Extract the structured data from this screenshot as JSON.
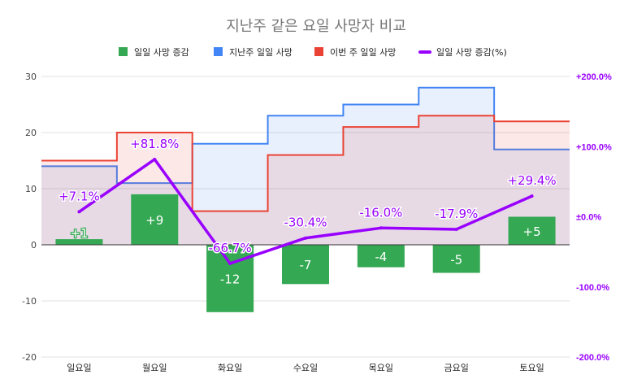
{
  "chart_data": {
    "type": "bar",
    "title": "지난주 같은 요일 사망자 비교",
    "categories": [
      "일요일",
      "월요일",
      "화요일",
      "수요일",
      "목요일",
      "금요일",
      "토요일"
    ],
    "legend": [
      {
        "key": "increase",
        "label": "일일 사망 증감",
        "color": "#34a853",
        "shape": "square"
      },
      {
        "key": "last_week",
        "label": "지난주 일일 사망",
        "color": "#4285f4",
        "shape": "square"
      },
      {
        "key": "this_week",
        "label": "이번 주 일일 사망",
        "color": "#ea4335",
        "shape": "square"
      },
      {
        "key": "pct",
        "label": "일일 사망 증감(%)",
        "color": "#9900ff",
        "shape": "line"
      }
    ],
    "series": [
      {
        "name": "일일 사망 증감",
        "kind": "bar",
        "axis": "left",
        "color": "#34a853",
        "values": [
          1,
          9,
          -12,
          -7,
          -4,
          -5,
          5
        ],
        "labels": [
          "+1",
          "+9",
          "-12",
          "-7",
          "-4",
          "-5",
          "+5"
        ]
      },
      {
        "name": "지난주 일일 사망",
        "kind": "stepped-area",
        "axis": "left",
        "color": "#4285f4",
        "values": [
          14,
          11,
          18,
          23,
          25,
          28,
          17
        ]
      },
      {
        "name": "이번 주 일일 사망",
        "kind": "stepped-area",
        "axis": "left",
        "color": "#ea4335",
        "values": [
          15,
          20,
          6,
          16,
          21,
          23,
          22
        ]
      },
      {
        "name": "일일 사망 증감(%)",
        "kind": "line",
        "axis": "right",
        "color": "#9900ff",
        "values": [
          7.1,
          81.8,
          -66.7,
          -30.4,
          -16.0,
          -17.9,
          29.4
        ],
        "labels": [
          "+7.1%",
          "+81.8%",
          "-66.7%",
          "-30.4%",
          "-16.0%",
          "-17.9%",
          "+29.4%"
        ]
      }
    ],
    "left_axis": {
      "ylim": [
        -20,
        30
      ],
      "ticks": [
        30,
        20,
        10,
        0,
        -10,
        -20
      ],
      "tick_labels": [
        "30",
        "20",
        "10",
        "0",
        "-10",
        "-20"
      ]
    },
    "right_axis": {
      "ylim": [
        -200,
        200
      ],
      "ticks": [
        200,
        100,
        0,
        -100,
        -200
      ],
      "tick_labels": [
        "+200.0%",
        "+100.0%",
        "±0.0%",
        "-100.0%",
        "-200.0%"
      ]
    },
    "grid": true,
    "legend_position": "top"
  }
}
